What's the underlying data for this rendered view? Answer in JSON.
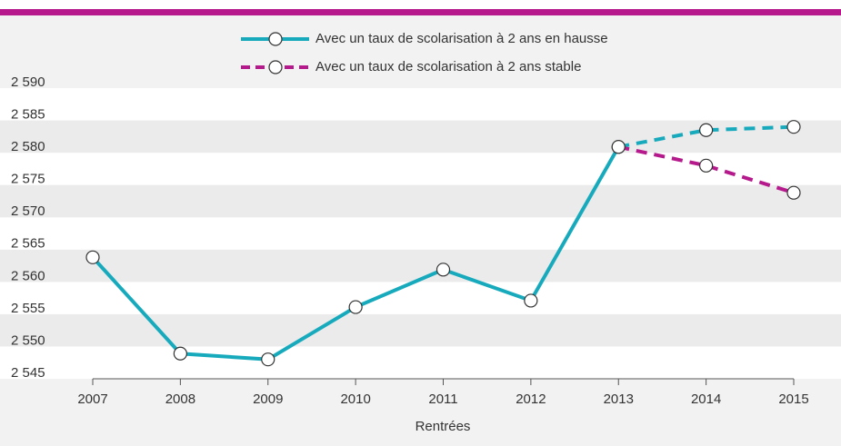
{
  "chart_data": {
    "type": "line",
    "x_label": "Rentrées",
    "categories": [
      "2007",
      "2008",
      "2009",
      "2010",
      "2011",
      "2012",
      "2013",
      "2014",
      "2015"
    ],
    "series": [
      {
        "name": "Avec un taux de scolarisation à 2 ans en hausse",
        "color": "#17aabd",
        "style": "solid",
        "values": [
          2563.8,
          2548.9,
          2548.0,
          2556.1,
          2561.9,
          2557.1,
          2580.9,
          2583.5,
          2584.0
        ]
      },
      {
        "name": "Avec un taux de scolarisation à 2 ans stable",
        "color": "#b5198b",
        "style": "dashed",
        "values": [
          null,
          null,
          null,
          null,
          null,
          null,
          2580.9,
          2578.0,
          2573.8
        ]
      }
    ],
    "ylim": [
      2545,
      2590
    ],
    "yticks": [
      {
        "value": 2545,
        "label": "2 545"
      },
      {
        "value": 2550,
        "label": "2 550"
      },
      {
        "value": 2555,
        "label": "2 555"
      },
      {
        "value": 2560,
        "label": "2 560"
      },
      {
        "value": 2565,
        "label": "2 565"
      },
      {
        "value": 2570,
        "label": "2 570"
      },
      {
        "value": 2575,
        "label": "2 575"
      },
      {
        "value": 2580,
        "label": "2 580"
      },
      {
        "value": 2585,
        "label": "2 585"
      },
      {
        "value": 2590,
        "label": "2 590"
      }
    ],
    "grid": "bands",
    "legend": "top"
  }
}
